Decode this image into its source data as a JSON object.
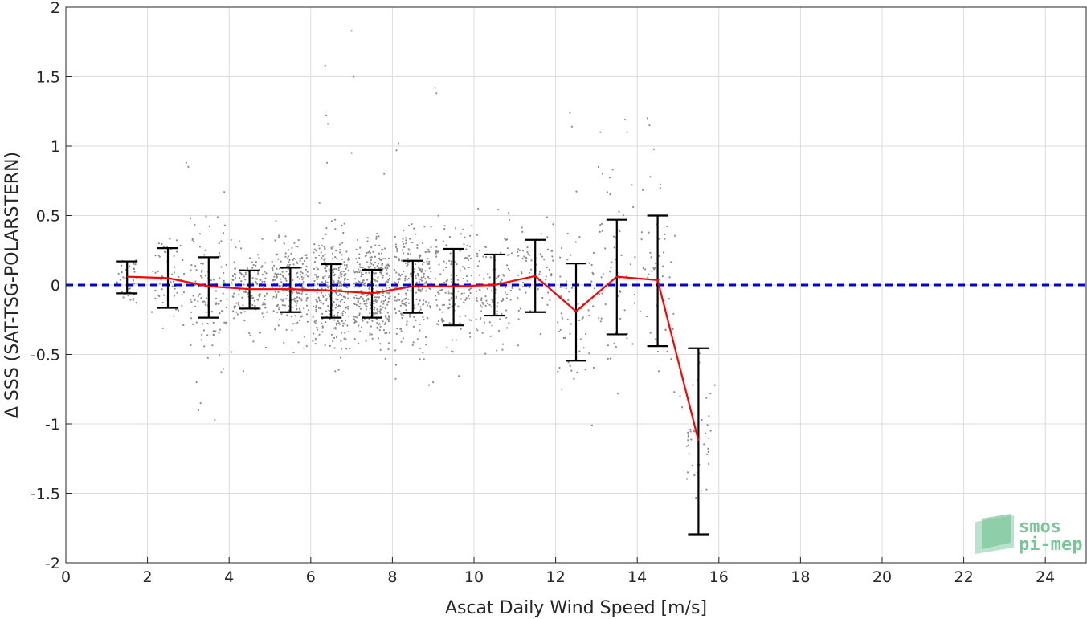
{
  "chart_data": {
    "type": "scatter",
    "xlabel": "Ascat Daily Wind Speed [m/s]",
    "ylabel": "Δ SSS (SAT-TSG-POLARSTERN)",
    "xlim": [
      0,
      25
    ],
    "ylim": [
      -2,
      2
    ],
    "xticks": [
      0,
      2,
      4,
      6,
      8,
      10,
      12,
      14,
      16,
      18,
      20,
      22,
      24
    ],
    "yticks": [
      -2,
      -1.5,
      -1,
      -0.5,
      0,
      0.5,
      1,
      1.5,
      2
    ],
    "ytick_labels": [
      "-2",
      "-1.5",
      "-1",
      "-0.5",
      "0",
      "0.5",
      "1",
      "1.5",
      "2"
    ],
    "grid": true,
    "reference_line": {
      "y": 0,
      "color": "#0000dd",
      "style": "dashed"
    },
    "binned_stats": {
      "color": "#ff0000",
      "errorbar_color": "#000000",
      "x": [
        1.5,
        2.5,
        3.5,
        4.5,
        5.5,
        6.5,
        7.5,
        8.5,
        9.5,
        10.5,
        11.5,
        12.5,
        13.5,
        14.5,
        15.5
      ],
      "mean": [
        0.06,
        0.05,
        -0.01,
        -0.03,
        -0.03,
        -0.04,
        -0.06,
        -0.01,
        -0.01,
        0.0,
        0.065,
        -0.19,
        0.06,
        0.035,
        -1.12
      ],
      "upper": [
        0.17,
        0.265,
        0.2,
        0.105,
        0.125,
        0.15,
        0.11,
        0.175,
        0.26,
        0.22,
        0.325,
        0.155,
        0.47,
        0.5,
        -0.455
      ],
      "lower": [
        -0.06,
        -0.165,
        -0.235,
        -0.17,
        -0.195,
        -0.235,
        -0.235,
        -0.2,
        -0.29,
        -0.22,
        -0.195,
        -0.545,
        -0.355,
        -0.44,
        -1.795
      ]
    },
    "scatter_color": "#8c8c8c",
    "scatter_clusters": [
      {
        "x": 1.5,
        "y": 0.05,
        "spread": 0.5,
        "sd": 0.1,
        "n": 40
      },
      {
        "x": 2.5,
        "y": 0.05,
        "spread": 0.8,
        "sd": 0.15,
        "n": 60
      },
      {
        "x": 3.5,
        "y": -0.05,
        "spread": 0.9,
        "sd": 0.25,
        "n": 110
      },
      {
        "x": 4.5,
        "y": -0.03,
        "spread": 0.9,
        "sd": 0.13,
        "n": 140
      },
      {
        "x": 5.5,
        "y": -0.03,
        "spread": 0.9,
        "sd": 0.16,
        "n": 230
      },
      {
        "x": 6.5,
        "y": -0.04,
        "spread": 0.9,
        "sd": 0.2,
        "n": 320
      },
      {
        "x": 7.5,
        "y": -0.06,
        "spread": 0.9,
        "sd": 0.18,
        "n": 330
      },
      {
        "x": 8.5,
        "y": -0.01,
        "spread": 0.9,
        "sd": 0.2,
        "n": 230
      },
      {
        "x": 9.5,
        "y": -0.01,
        "spread": 0.9,
        "sd": 0.22,
        "n": 140
      },
      {
        "x": 10.5,
        "y": 0.0,
        "spread": 0.9,
        "sd": 0.2,
        "n": 110
      },
      {
        "x": 11.5,
        "y": 0.05,
        "spread": 0.9,
        "sd": 0.2,
        "n": 70
      },
      {
        "x": 12.5,
        "y": -0.2,
        "spread": 0.9,
        "sd": 0.35,
        "n": 60
      },
      {
        "x": 13.5,
        "y": 0.05,
        "spread": 0.9,
        "sd": 0.4,
        "n": 55
      },
      {
        "x": 14.5,
        "y": 0.03,
        "spread": 0.9,
        "sd": 0.45,
        "n": 50
      },
      {
        "x": 15.5,
        "y": -1.1,
        "spread": 0.6,
        "sd": 0.25,
        "n": 40
      }
    ],
    "scatter_outliers": [
      [
        6.35,
        1.58
      ],
      [
        6.38,
        1.22
      ],
      [
        6.42,
        1.16
      ],
      [
        7.0,
        1.83
      ],
      [
        7.05,
        1.5
      ],
      [
        9.05,
        1.42
      ],
      [
        9.08,
        1.38
      ],
      [
        12.35,
        1.24
      ],
      [
        12.4,
        1.14
      ],
      [
        13.1,
        1.1
      ],
      [
        13.7,
        1.19
      ],
      [
        13.75,
        1.1
      ],
      [
        14.25,
        1.2
      ],
      [
        14.3,
        1.15
      ],
      [
        2.95,
        0.88
      ],
      [
        3.0,
        0.85
      ],
      [
        8.15,
        1.02
      ],
      [
        8.1,
        0.97
      ],
      [
        7.0,
        0.95
      ],
      [
        6.4,
        0.88
      ],
      [
        3.3,
        -0.85
      ],
      [
        3.25,
        -0.9
      ],
      [
        3.65,
        -0.97
      ],
      [
        3.2,
        -0.7
      ],
      [
        12.15,
        -0.75
      ],
      [
        15.05,
        -0.8
      ],
      [
        15.1,
        -0.88
      ],
      [
        15.35,
        -1.3
      ],
      [
        15.4,
        -1.37
      ],
      [
        15.8,
        -1.05
      ],
      [
        15.9,
        -0.72
      ],
      [
        13.05,
        0.85
      ],
      [
        13.15,
        0.8
      ],
      [
        7.8,
        0.8
      ],
      [
        8.9,
        -0.72
      ],
      [
        9.0,
        -0.7
      ],
      [
        6.6,
        -0.62
      ],
      [
        4.9,
        -0.45
      ],
      [
        4.35,
        -0.62
      ],
      [
        10.1,
        0.55
      ]
    ]
  },
  "logo": {
    "line1": "smos",
    "line2": "pi-mep"
  }
}
